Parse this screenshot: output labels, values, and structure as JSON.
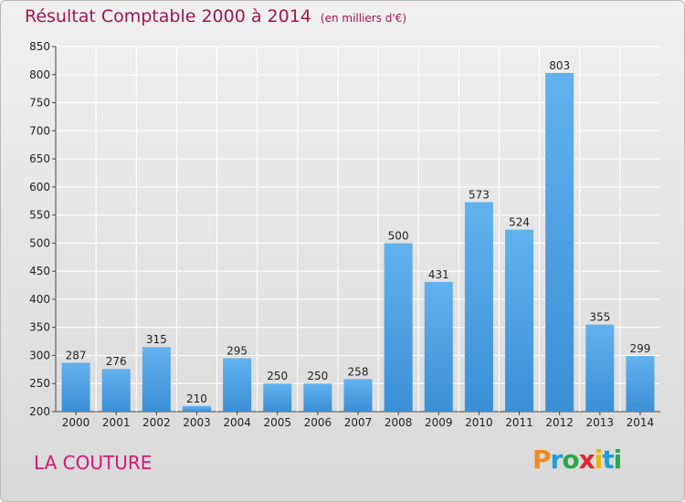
{
  "title": "Résultat Comptable 2000 à 2014",
  "unit": "(en milliers d'€)",
  "commune": "LA COUTURE",
  "brand": {
    "letters": [
      "P",
      "r",
      "o",
      "x",
      "i",
      "t",
      "i"
    ],
    "colors": [
      "#f08a1c",
      "#1d9fd8",
      "#2aa84a",
      "#e3262e",
      "#f0b400",
      "#1d9fd8",
      "#2aa84a"
    ]
  },
  "colors": {
    "bar": "#3a8fd6",
    "bar_light": "#62b2ee",
    "grid": "#ffffff",
    "text": "#222222"
  },
  "chart_data": {
    "type": "bar",
    "categories": [
      "2000",
      "2001",
      "2002",
      "2003",
      "2004",
      "2005",
      "2006",
      "2007",
      "2008",
      "2009",
      "2010",
      "2011",
      "2012",
      "2013",
      "2014"
    ],
    "values": [
      287,
      276,
      315,
      210,
      295,
      250,
      250,
      258,
      500,
      431,
      573,
      524,
      803,
      355,
      299
    ],
    "ylim": [
      200,
      850
    ],
    "yticks": [
      200,
      250,
      300,
      350,
      400,
      450,
      500,
      550,
      600,
      650,
      700,
      750,
      800,
      850
    ],
    "title": "Résultat Comptable 2000 à 2014",
    "xlabel": "",
    "ylabel": "",
    "grid": true
  }
}
